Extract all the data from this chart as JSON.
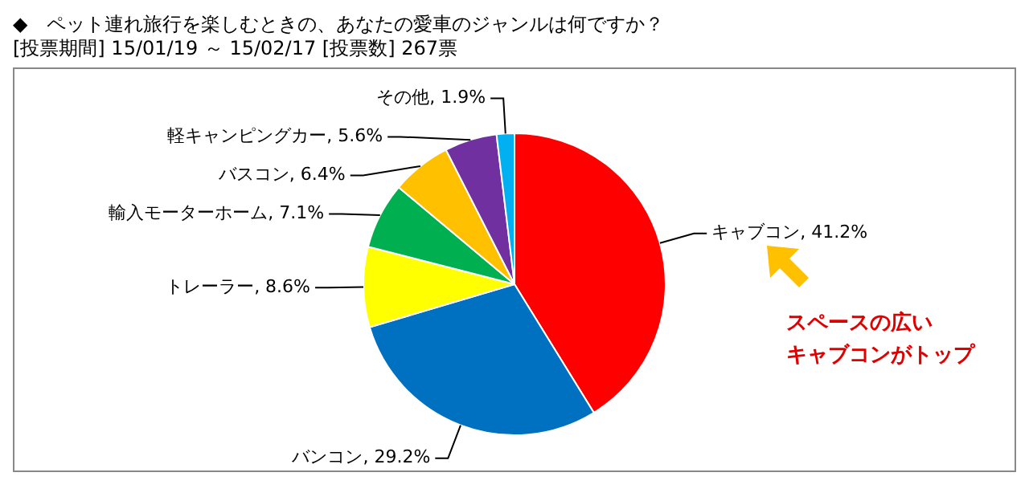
{
  "chart_data": {
    "type": "pie",
    "title": "◆　ペット連れ旅行を楽しむときの、あなたの愛車のジャンルは何ですか？",
    "subtitle": "[投票期間] 15/01/19 ～ 15/02/17 [投票数] 267票",
    "categories": [
      "キャブコン",
      "バンコン",
      "トレーラー",
      "輸入モーターホーム",
      "バスコン",
      "軽キャンピングカー",
      "その他"
    ],
    "values": [
      41.2,
      29.2,
      8.6,
      7.1,
      6.4,
      5.6,
      1.9
    ],
    "value_labels": [
      "41.2%",
      "29.2%",
      "8.6%",
      "7.1%",
      "6.4%",
      "5.6%",
      "1.9%"
    ],
    "colors": [
      "#ff0000",
      "#0070c0",
      "#ffff00",
      "#00b050",
      "#ffc000",
      "#7030a0",
      "#00b0f0"
    ],
    "legend": false,
    "annotations": [
      "スペースの広い",
      "キャブコンがトップ"
    ]
  }
}
